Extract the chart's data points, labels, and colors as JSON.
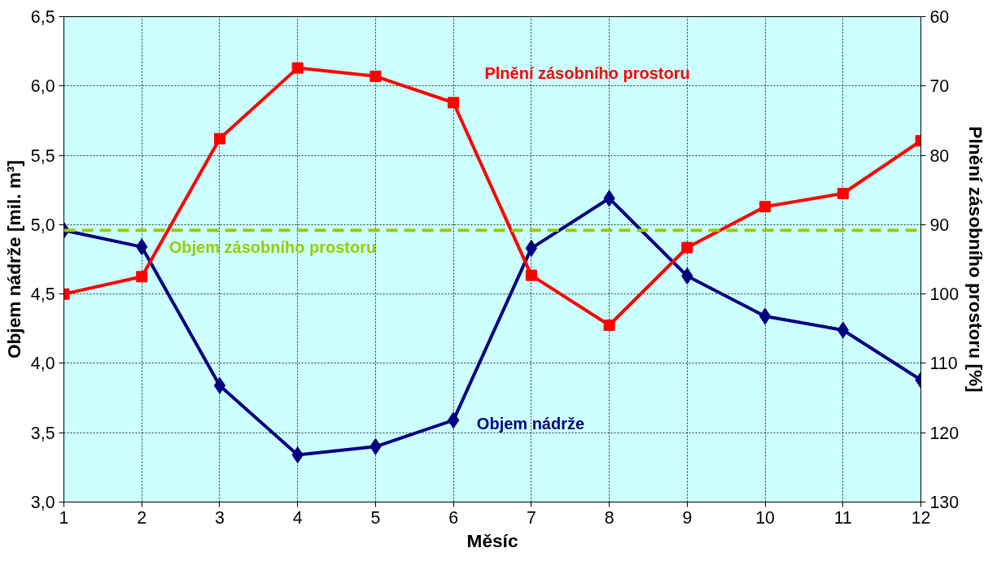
{
  "chart_data": {
    "type": "line",
    "xlabel": "Měsíc",
    "ylabel": "Objem nádrže [mil. m³]",
    "y2label": "Plnění zásobního prostoru [%]",
    "x": [
      1,
      2,
      3,
      4,
      5,
      6,
      7,
      8,
      9,
      10,
      11,
      12
    ],
    "xlim": [
      1,
      12
    ],
    "xticks": [
      1,
      2,
      3,
      4,
      5,
      6,
      7,
      8,
      9,
      10,
      11,
      12
    ],
    "ylim": [
      3.0,
      6.5
    ],
    "yticks": [
      {
        "value": 3.0,
        "label": "3,0"
      },
      {
        "value": 3.5,
        "label": "3,5"
      },
      {
        "value": 4.0,
        "label": "4,0"
      },
      {
        "value": 4.5,
        "label": "4,5"
      },
      {
        "value": 5.0,
        "label": "5,0"
      },
      {
        "value": 5.5,
        "label": "5,5"
      },
      {
        "value": 6.0,
        "label": "6,0"
      },
      {
        "value": 6.5,
        "label": "6,5"
      }
    ],
    "y2lim": [
      130,
      60
    ],
    "y2ticks": [
      60,
      70,
      80,
      90,
      100,
      110,
      120,
      130
    ],
    "grid": true,
    "line_style": "solid",
    "series": [
      {
        "name": "Objem nádrže",
        "color": "#000080",
        "marker": "diamond",
        "values": [
          4.96,
          4.84,
          3.84,
          3.34,
          3.4,
          3.59,
          4.83,
          5.19,
          4.63,
          4.34,
          4.24,
          3.88
        ]
      },
      {
        "name": "Plnění zásobního prostoru",
        "color": "#ff0000",
        "marker": "square",
        "axis": "y2",
        "values": [
          100,
          97.5,
          77.6,
          67.4,
          68.6,
          72.4,
          97.3,
          104.5,
          93.3,
          87.4,
          85.5,
          77.9
        ]
      }
    ],
    "ref_lines": [
      {
        "axis": "y",
        "value": 4.96,
        "label": "Objem zásobního prostoru",
        "color": "#99cc00",
        "line_style": "dashed"
      }
    ]
  }
}
